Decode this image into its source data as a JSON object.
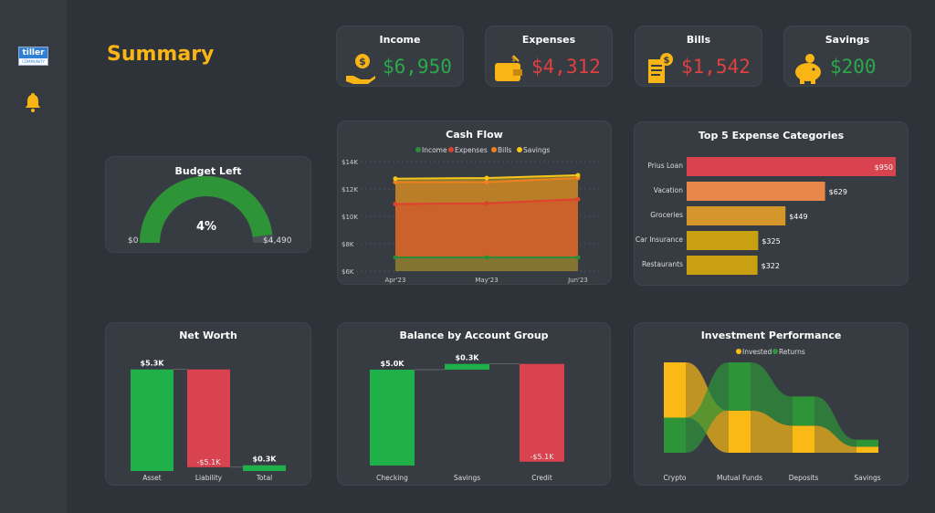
{
  "sidebar": {
    "logo_text": "tiller",
    "logo_sub": "COMMUNITY",
    "icons": [
      "tiller-logo",
      "bell-icon"
    ]
  },
  "page_title": "Summary",
  "colors": {
    "accent": "#f9b515",
    "green": "#2aa84a",
    "red": "#e04040",
    "orange": "#e8904a"
  },
  "kpis": [
    {
      "label": "Income",
      "value": "$6,950",
      "color": "#2aa84a",
      "icon": "money-hand-icon"
    },
    {
      "label": "Expenses",
      "value": "$4,312",
      "color": "#e04040",
      "icon": "wallet-icon"
    },
    {
      "label": "Bills",
      "value": "$1,542",
      "color": "#e04040",
      "icon": "bill-receipt-icon"
    },
    {
      "label": "Savings",
      "value": "$200",
      "color": "#2aa84a",
      "icon": "piggy-bank-icon"
    }
  ],
  "budget": {
    "title": "Budget Left",
    "percent": "4%",
    "fraction": 0.04,
    "min": "$0",
    "max": "$4,490"
  },
  "chart_data": [
    {
      "type": "area",
      "title": "Cash Flow",
      "categories": [
        "Apr'23",
        "May'23",
        "Jun'23"
      ],
      "yticks": [
        "$6K",
        "$8K",
        "$10K",
        "$12K",
        "$14K"
      ],
      "ylim": [
        6000,
        14000
      ],
      "legend": "top",
      "series": [
        {
          "name": "Income",
          "color": "#2e8b3a",
          "values": [
            7000,
            7000,
            7000
          ]
        },
        {
          "name": "Expenses",
          "color": "#e0402e",
          "values": [
            10900,
            10950,
            11250
          ]
        },
        {
          "name": "Bills",
          "color": "#f0821e",
          "values": [
            12500,
            12500,
            12800
          ]
        },
        {
          "name": "Savings",
          "color": "#f5c518",
          "values": [
            12750,
            12800,
            13000
          ]
        }
      ]
    },
    {
      "type": "bar",
      "title": "Top 5 Expense Categories",
      "orientation": "horizontal",
      "categories": [
        "Prius Loan",
        "Vacation",
        "Groceries",
        "Car Insurance",
        "Restaurants"
      ],
      "values": [
        950,
        629,
        449,
        325,
        322
      ],
      "labels": [
        "$950",
        "$629",
        "$449",
        "$325",
        "$322"
      ],
      "colors": [
        "#d9434f",
        "#e8874a",
        "#d4962a",
        "#c8a012",
        "#c8a012"
      ]
    },
    {
      "type": "bar",
      "title": "Net Worth",
      "subtype": "waterfall",
      "categories": [
        "Asset",
        "Liability",
        "Total"
      ],
      "values": [
        5.3,
        -5.1,
        0.3
      ],
      "labels": [
        "$5.3K",
        "-$5.1K",
        "$0.3K"
      ]
    },
    {
      "type": "bar",
      "title": "Balance by Account Group",
      "subtype": "waterfall",
      "categories": [
        "Checking",
        "Savings",
        "Credit"
      ],
      "values": [
        5.0,
        0.3,
        -5.1
      ],
      "labels": [
        "$5.0K",
        "$0.3K",
        "-$5.1K"
      ]
    },
    {
      "type": "area",
      "subtype": "ribbon",
      "title": "Investment Performance",
      "categories": [
        "Crypto",
        "Mutual Funds",
        "Deposits",
        "Savings"
      ],
      "legend": "top",
      "series": [
        {
          "name": "Invested",
          "color": "#fbb916",
          "values": [
            5.5,
            4.2,
            2.7,
            0.6
          ]
        },
        {
          "name": "Returns",
          "color": "#2e9438",
          "values": [
            3.5,
            4.8,
            2.9,
            0.7
          ]
        }
      ]
    }
  ]
}
